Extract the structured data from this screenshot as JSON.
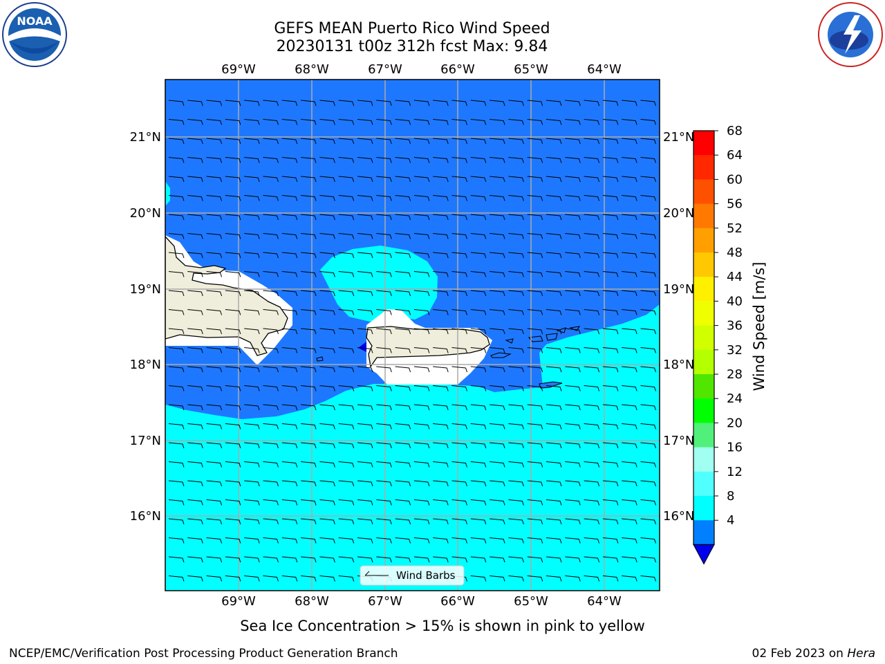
{
  "title": {
    "line1": "GEFS MEAN Puerto Rico Wind Speed",
    "line2": "20230131 t00z 312h fcst   Max: 9.84"
  },
  "logos": {
    "left": "NOAA",
    "left_ring": "NATIONAL OCEANIC AND ATMOSPHERIC ADMINISTRATION · U.S. DEPARTMENT OF COMMERCE",
    "right_ring": "NATIONAL WEATHER SERVICE"
  },
  "axes": {
    "lon_labels": [
      "69°W",
      "68°W",
      "67°W",
      "66°W",
      "65°W",
      "64°W"
    ],
    "lat_labels": [
      "21°N",
      "20°N",
      "19°N",
      "18°N",
      "17°N",
      "16°N"
    ]
  },
  "legend": {
    "label": "Wind Barbs"
  },
  "colorbar": {
    "label": "Wind Speed [m/s]",
    "ticks": [
      "68",
      "64",
      "60",
      "56",
      "52",
      "48",
      "44",
      "40",
      "36",
      "32",
      "28",
      "24",
      "20",
      "16",
      "12",
      "8",
      "4"
    ],
    "colors": [
      "#ff0000",
      "#ff2800",
      "#ff5000",
      "#ff7800",
      "#ffa000",
      "#ffc800",
      "#fff000",
      "#f0ff00",
      "#d2ff00",
      "#b4ff00",
      "#50e600",
      "#00ff00",
      "#50f07a",
      "#a0fff0",
      "#50ffff",
      "#00ffff",
      "#0080ff"
    ],
    "extend_color": "#0000ee"
  },
  "map_colors": {
    "ocean_4_8": "#1e78ff",
    "ocean_8_12": "#00ffff",
    "land": "#efeedc"
  },
  "footer": {
    "sea_ice_note": "Sea Ice Concentration > 15% is shown in pink to yellow",
    "branch": "NCEP/EMC/Verification Post Processing Product Generation Branch",
    "date": "02 Feb 2023 on ",
    "machine": "Hera"
  }
}
